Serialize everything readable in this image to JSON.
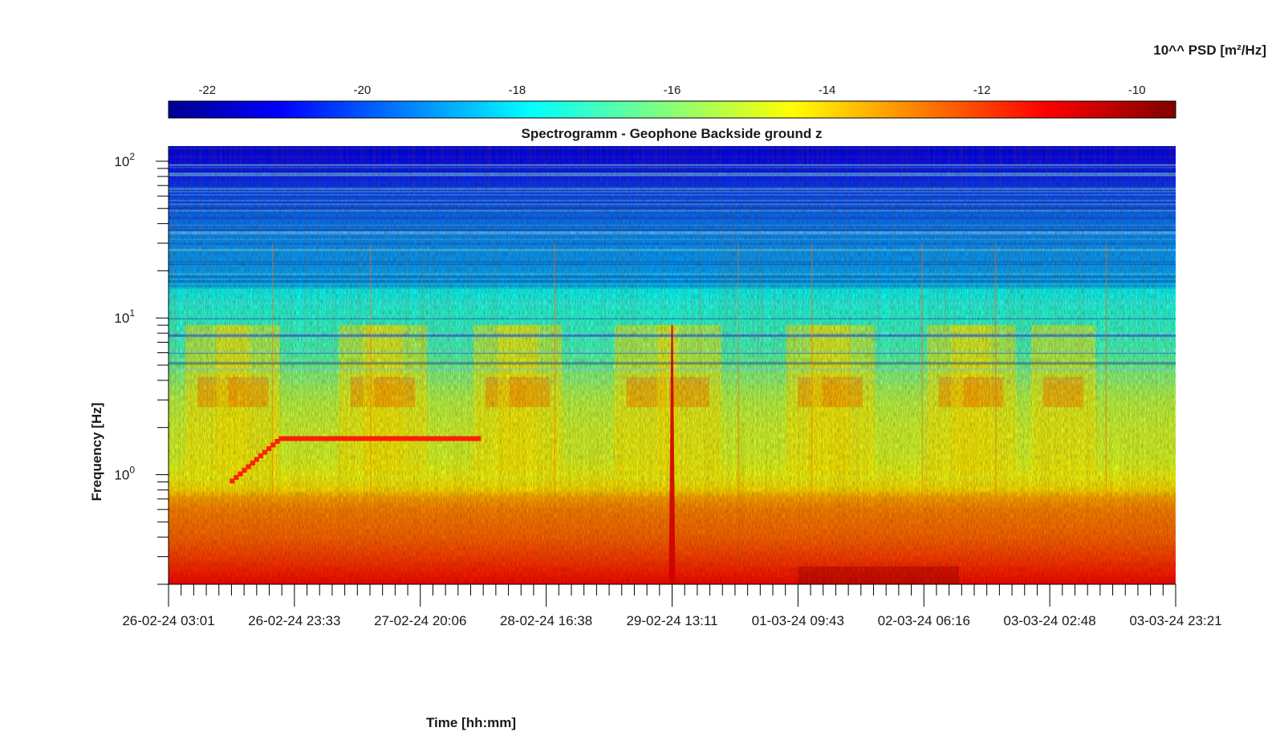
{
  "chart_data": {
    "type": "heatmap",
    "title": "Spectrogramm - Geophone Backside ground z",
    "xlabel": "Time [hh:mm]",
    "ylabel": "Frequency [Hz]",
    "y_scale": "log",
    "ylim": [
      0.2,
      125
    ],
    "y_ticks": [
      {
        "value": 1,
        "base": "10",
        "exp": "0"
      },
      {
        "value": 10,
        "base": "10",
        "exp": "1"
      },
      {
        "value": 100,
        "base": "10",
        "exp": "2"
      }
    ],
    "x_tick_labels": [
      "26-02-24 03:01",
      "26-02-24 23:33",
      "27-02-24 20:06",
      "28-02-24 16:38",
      "29-02-24 13:11",
      "01-03-24 09:43",
      "02-03-24 06:16",
      "03-03-24 02:48",
      "03-03-24 23:21"
    ],
    "colorbar": {
      "label": "10^^ PSD [m²/Hz]",
      "range": [
        -22.5,
        -9.5
      ],
      "ticks": [
        -22,
        -20,
        -18,
        -16,
        -14,
        -12,
        -10
      ],
      "colormap": "jet"
    },
    "features": [
      {
        "type": "ramp",
        "from_date": "26-02-24 13:00",
        "to_date": "26-02-24 21:00",
        "freq_from": 0.9,
        "freq_to": 1.7,
        "value": -11.5
      },
      {
        "type": "line",
        "from_date": "26-02-24 21:00",
        "to_date": "28-02-24 06:00",
        "freq": 1.7,
        "value": -11.5
      },
      {
        "type": "spike",
        "date": "29-02-24 13:11",
        "value": -10.5
      }
    ]
  }
}
